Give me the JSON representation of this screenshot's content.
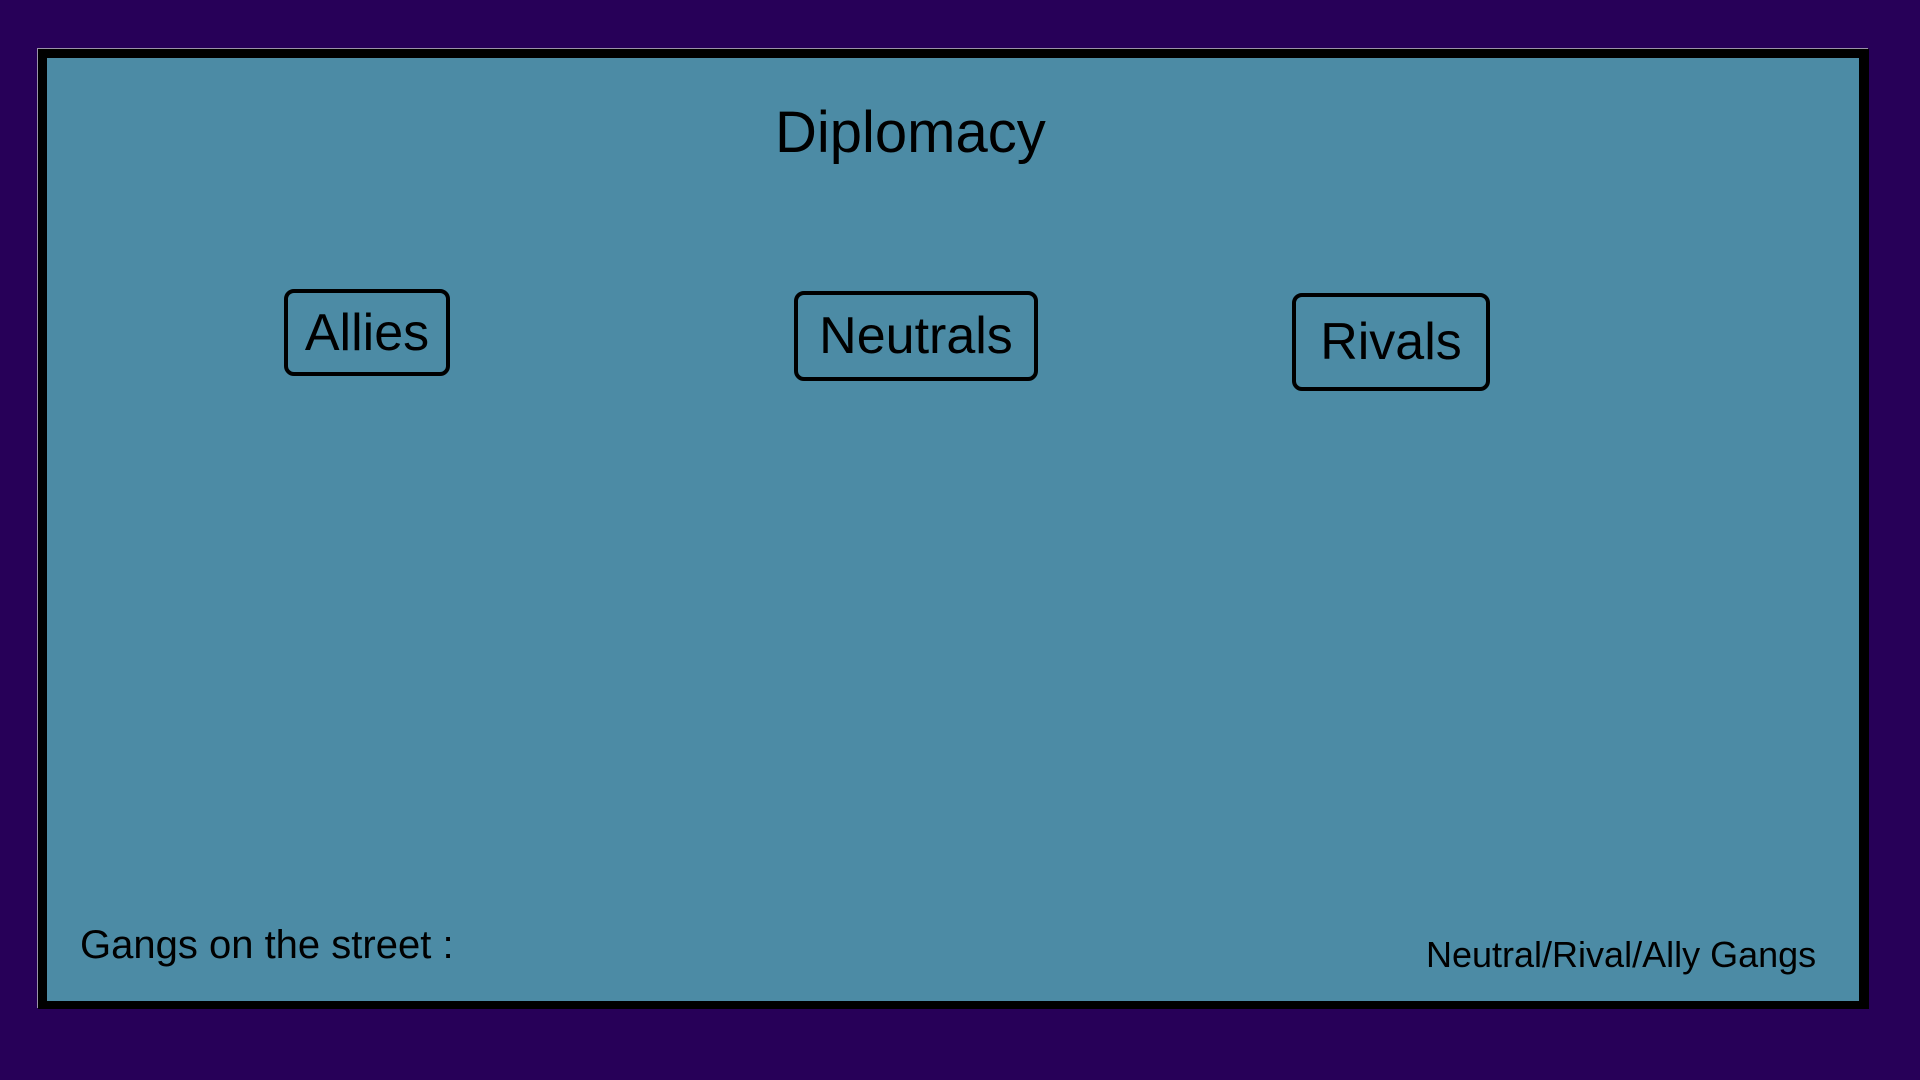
{
  "title": "Diplomacy",
  "tabs": {
    "allies": "Allies",
    "neutrals": "Neutrals",
    "rivals": "Rivals"
  },
  "footer": {
    "gangs_label": "Gangs on the street :",
    "gang_types": "Neutral/Rival/Ally Gangs"
  },
  "colors": {
    "background": "#270058",
    "panel": "#4c8ba5",
    "border": "#000000"
  }
}
